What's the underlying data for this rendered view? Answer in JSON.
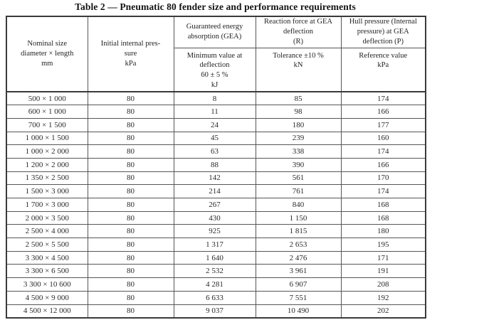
{
  "title": "Table 2 — Pneumatic 80 fender size and performance requirements",
  "table": {
    "header_groups": {
      "nominal_size": "Nominal size\ndiameter × length\nmm",
      "initial_pressure": "Initial internal pres-\nsure\nkPa",
      "gea": "Guaranteed energy\nabsorption (GEA)",
      "reaction": "Reaction force at GEA\ndeflection\n(R)",
      "hull": "Hull pressure (Internal\npressure) at GEA\ndeflection (P)"
    },
    "subheaders": {
      "gea_sub": "Minimum value at\ndeflection\n60 ± 5 %\nkJ",
      "reaction_sub": "Tolerance ±10 %\nkN",
      "hull_sub": "Reference value\nkPa"
    },
    "rows": [
      [
        "500 × 1 000",
        "80",
        "8",
        "85",
        "174"
      ],
      [
        "600 × 1 000",
        "80",
        "11",
        "98",
        "166"
      ],
      [
        "700 × 1 500",
        "80",
        "24",
        "180",
        "177"
      ],
      [
        "1 000 × 1 500",
        "80",
        "45",
        "239",
        "160"
      ],
      [
        "1 000 × 2 000",
        "80",
        "63",
        "338",
        "174"
      ],
      [
        "1 200 × 2 000",
        "80",
        "88",
        "390",
        "166"
      ],
      [
        "1 350 × 2 500",
        "80",
        "142",
        "561",
        "170"
      ],
      [
        "1 500 × 3 000",
        "80",
        "214",
        "761",
        "174"
      ],
      [
        "1 700 × 3 000",
        "80",
        "267",
        "840",
        "168"
      ],
      [
        "2 000 × 3 500",
        "80",
        "430",
        "1 150",
        "168"
      ],
      [
        "2 500 × 4 000",
        "80",
        "925",
        "1 815",
        "180"
      ],
      [
        "2 500 × 5 500",
        "80",
        "1 317",
        "2 653",
        "195"
      ],
      [
        "3 300 × 4 500",
        "80",
        "1 640",
        "2 476",
        "171"
      ],
      [
        "3 300 × 6 500",
        "80",
        "2 532",
        "3 961",
        "191"
      ],
      [
        "3 300 × 10 600",
        "80",
        "4 281",
        "6 907",
        "208"
      ],
      [
        "4 500 × 9 000",
        "80",
        "6 633",
        "7 551",
        "192"
      ],
      [
        "4 500 × 12 000",
        "80",
        "9 037",
        "10 490",
        "202"
      ]
    ]
  }
}
